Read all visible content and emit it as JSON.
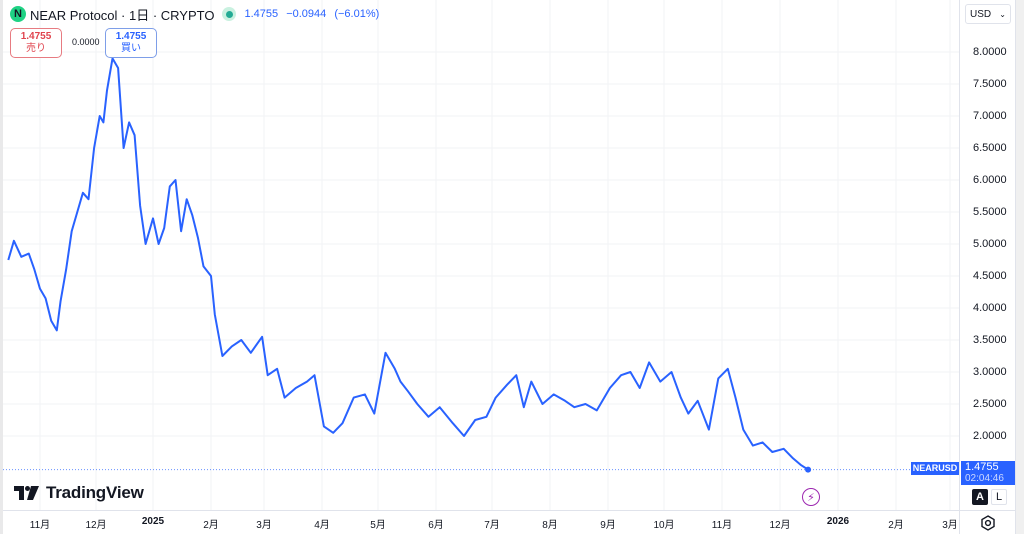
{
  "header": {
    "logo_letter": "N",
    "title": "NEAR Protocol · 1日 · CRYPTO",
    "last": "1.4755",
    "change": "−0.0944",
    "change_pct": "(−6.01%)",
    "status_color": "#22ab94"
  },
  "trade": {
    "sell_price": "1.4755",
    "sell_label": "売り",
    "spread": "0.0000",
    "buy_price": "1.4755",
    "buy_label": "買い"
  },
  "currency_select": {
    "value": "USD",
    "icon": "chevron-down-icon"
  },
  "price_axis": {
    "labels": [
      "8.0000",
      "7.5000",
      "7.0000",
      "6.5000",
      "6.0000",
      "5.5000",
      "5.0000",
      "4.5000",
      "4.0000",
      "3.5000",
      "3.0000",
      "2.5000",
      "2.0000"
    ]
  },
  "last_price_tag": {
    "symbol": "NEARUSD",
    "price": "1.4755",
    "countdown": "02:04:46"
  },
  "scale_buttons": {
    "auto": "A",
    "log": "L"
  },
  "time_axis": {
    "labels": [
      "11月",
      "12月",
      "2025",
      "2月",
      "3月",
      "4月",
      "5月",
      "6月",
      "7月",
      "8月",
      "9月",
      "10月",
      "11月",
      "12月",
      "2026",
      "2月",
      "3月"
    ]
  },
  "branding": {
    "name": "TradingView"
  },
  "colors": {
    "line": "#2962ff",
    "sell": "#e0444e",
    "buy": "#2962ff",
    "flash": "#9c27b0"
  },
  "chart_data": {
    "type": "line",
    "title": "NEAR Protocol · 1日 · CRYPTO",
    "symbol": "NEARUSD",
    "xlabel": "",
    "ylabel": "USD",
    "ylim": [
      1.25,
      8.6
    ],
    "grid": true,
    "x_tick_labels": [
      "11月",
      "12月",
      "2025",
      "2月",
      "3月",
      "4月",
      "5月",
      "6月",
      "7月",
      "8月",
      "9月",
      "10月",
      "11月",
      "12月",
      "2026",
      "2月",
      "3月"
    ],
    "y_tick_labels": [
      "8.0000",
      "7.5000",
      "7.0000",
      "6.5000",
      "6.0000",
      "5.5000",
      "5.0000",
      "4.5000",
      "4.0000",
      "3.5000",
      "3.0000",
      "2.5000",
      "2.0000"
    ],
    "series": [
      {
        "name": "NEARUSD",
        "x": [
          "2024-10-15",
          "2024-10-18",
          "2024-10-22",
          "2024-10-26",
          "2024-10-29",
          "2024-11-01",
          "2024-11-04",
          "2024-11-07",
          "2024-11-10",
          "2024-11-12",
          "2024-11-15",
          "2024-11-18",
          "2024-11-21",
          "2024-11-24",
          "2024-11-27",
          "2024-11-30",
          "2024-12-03",
          "2024-12-05",
          "2024-12-07",
          "2024-12-10",
          "2024-12-13",
          "2024-12-16",
          "2024-12-19",
          "2024-12-22",
          "2024-12-25",
          "2024-12-28",
          "2025-01-01",
          "2025-01-04",
          "2025-01-07",
          "2025-01-10",
          "2025-01-13",
          "2025-01-16",
          "2025-01-19",
          "2025-01-22",
          "2025-01-25",
          "2025-01-28",
          "2025-02-01",
          "2025-02-03",
          "2025-02-07",
          "2025-02-12",
          "2025-02-17",
          "2025-02-22",
          "2025-02-28",
          "2025-03-03",
          "2025-03-08",
          "2025-03-12",
          "2025-03-18",
          "2025-03-24",
          "2025-03-28",
          "2025-04-02",
          "2025-04-07",
          "2025-04-12",
          "2025-04-18",
          "2025-04-24",
          "2025-04-29",
          "2025-05-05",
          "2025-05-10",
          "2025-05-13",
          "2025-05-17",
          "2025-05-22",
          "2025-05-28",
          "2025-06-03",
          "2025-06-10",
          "2025-06-16",
          "2025-06-22",
          "2025-06-28",
          "2025-07-03",
          "2025-07-09",
          "2025-07-14",
          "2025-07-18",
          "2025-07-22",
          "2025-07-28",
          "2025-08-03",
          "2025-08-09",
          "2025-08-14",
          "2025-08-20",
          "2025-08-26",
          "2025-09-02",
          "2025-09-08",
          "2025-09-13",
          "2025-09-18",
          "2025-09-23",
          "2025-09-29",
          "2025-10-05",
          "2025-10-10",
          "2025-10-14",
          "2025-10-19",
          "2025-10-25",
          "2025-10-30",
          "2025-11-04",
          "2025-11-08",
          "2025-11-12",
          "2025-11-17",
          "2025-11-22",
          "2025-11-27",
          "2025-12-03",
          "2025-12-08",
          "2025-12-12",
          "2025-12-16"
        ],
        "values": [
          4.75,
          5.05,
          4.8,
          4.85,
          4.6,
          4.3,
          4.15,
          3.8,
          3.65,
          4.1,
          4.6,
          5.2,
          5.5,
          5.8,
          5.7,
          6.5,
          7.0,
          6.9,
          7.4,
          7.9,
          7.75,
          6.5,
          6.9,
          6.7,
          5.6,
          5.0,
          5.4,
          5.0,
          5.25,
          5.9,
          6.0,
          5.2,
          5.7,
          5.45,
          5.1,
          4.65,
          4.5,
          3.9,
          3.25,
          3.4,
          3.5,
          3.3,
          3.55,
          2.95,
          3.05,
          2.6,
          2.75,
          2.85,
          2.95,
          2.15,
          2.05,
          2.2,
          2.6,
          2.65,
          2.35,
          3.3,
          3.05,
          2.85,
          2.7,
          2.5,
          2.3,
          2.45,
          2.2,
          2.0,
          2.25,
          2.3,
          2.6,
          2.8,
          2.95,
          2.45,
          2.85,
          2.5,
          2.65,
          2.55,
          2.45,
          2.5,
          2.4,
          2.75,
          2.95,
          3.0,
          2.75,
          3.15,
          2.85,
          3.0,
          2.6,
          2.35,
          2.55,
          2.1,
          2.9,
          3.05,
          2.6,
          2.1,
          1.85,
          1.9,
          1.75,
          1.8,
          1.65,
          1.55,
          1.4755
        ]
      }
    ],
    "last_value": 1.4755,
    "change": -0.0944,
    "change_pct": -6.01
  }
}
